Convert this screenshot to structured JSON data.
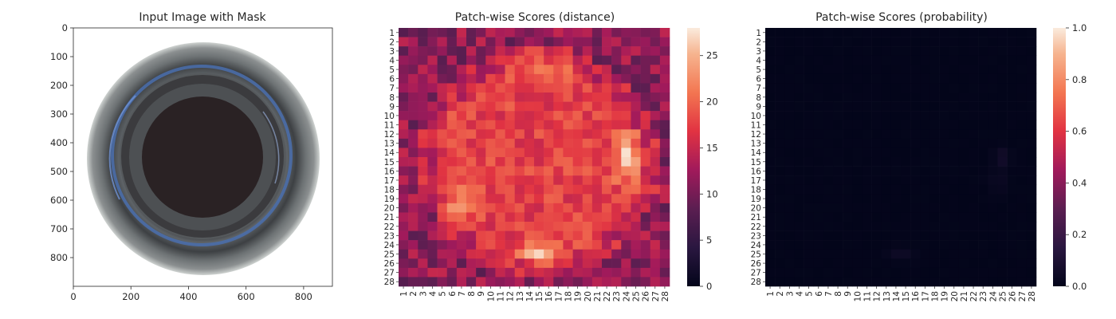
{
  "chart_data": [
    {
      "type": "image",
      "title": "Input Image with Mask",
      "xticks": [
        "0",
        "200",
        "400",
        "600",
        "800"
      ],
      "yticks": [
        "0",
        "100",
        "200",
        "300",
        "400",
        "500",
        "600",
        "700",
        "800"
      ],
      "xlim": [
        0,
        900
      ],
      "ylim": [
        900,
        0
      ],
      "image_content": "top view of glass bottle neck on white background"
    },
    {
      "type": "heatmap",
      "title": "Patch-wise Scores (distance)",
      "rows": 28,
      "cols": 28,
      "row_labels": [
        "1",
        "2",
        "3",
        "4",
        "5",
        "6",
        "7",
        "8",
        "9",
        "10",
        "11",
        "12",
        "13",
        "14",
        "15",
        "16",
        "17",
        "18",
        "19",
        "20",
        "21",
        "22",
        "23",
        "24",
        "25",
        "26",
        "27",
        "28"
      ],
      "col_labels": [
        "1",
        "2",
        "3",
        "4",
        "5",
        "6",
        "7",
        "8",
        "9",
        "10",
        "11",
        "12",
        "13",
        "14",
        "15",
        "16",
        "17",
        "18",
        "19",
        "20",
        "21",
        "22",
        "23",
        "24",
        "25",
        "26",
        "27",
        "28"
      ],
      "colormap": "rocket",
      "colorbar": {
        "min": 0,
        "max": 28,
        "ticks": [
          "0",
          "5",
          "10",
          "15",
          "20",
          "25"
        ]
      },
      "description": "Values ~5-12 near the border, ~15-22 in the ring, peaks ~27 at rows 13-15 cols 23-24 and rows 24-25 cols 13-15"
    },
    {
      "type": "heatmap",
      "title": "Patch-wise Scores (probability)",
      "rows": 28,
      "cols": 28,
      "row_labels": [
        "1",
        "2",
        "3",
        "4",
        "5",
        "6",
        "7",
        "8",
        "9",
        "10",
        "11",
        "12",
        "13",
        "14",
        "15",
        "16",
        "17",
        "18",
        "19",
        "20",
        "21",
        "22",
        "23",
        "24",
        "25",
        "26",
        "27",
        "28"
      ],
      "col_labels": [
        "1",
        "2",
        "3",
        "4",
        "5",
        "6",
        "7",
        "8",
        "9",
        "10",
        "11",
        "12",
        "13",
        "14",
        "15",
        "16",
        "17",
        "18",
        "19",
        "20",
        "21",
        "22",
        "23",
        "24",
        "25",
        "26",
        "27",
        "28"
      ],
      "colormap": "rocket",
      "colorbar": {
        "min": 0.0,
        "max": 1.0,
        "ticks": [
          "0.0",
          "0.2",
          "0.4",
          "0.6",
          "0.8",
          "1.0"
        ]
      },
      "description": "Nearly all values ~0.0; faint elevations ~0.02-0.05 near rows 14-17 col 24 and rows 24-25 cols 13-15"
    }
  ]
}
